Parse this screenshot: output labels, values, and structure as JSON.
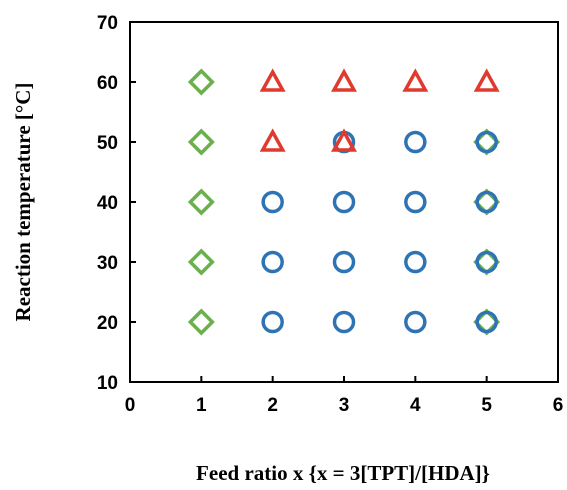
{
  "chart_data": {
    "type": "scatter",
    "title": "",
    "xlabel": "Feed ratio x {x = 3[TPT]/[HDA]}",
    "ylabel": "Reaction temperature  [°C]",
    "xlim": [
      0,
      6
    ],
    "ylim": [
      10,
      70
    ],
    "xticks": [
      0,
      1,
      2,
      3,
      4,
      5,
      6
    ],
    "yticks": [
      10,
      20,
      30,
      40,
      50,
      60,
      70
    ],
    "grid": false,
    "legend": "none",
    "series": [
      {
        "marker": "diamond",
        "color": "#6ab04c",
        "points": [
          [
            1,
            20
          ],
          [
            1,
            30
          ],
          [
            1,
            40
          ],
          [
            1,
            50
          ],
          [
            1,
            60
          ],
          [
            5,
            20
          ],
          [
            5,
            30
          ],
          [
            5,
            40
          ],
          [
            5,
            50
          ]
        ]
      },
      {
        "marker": "circle",
        "color": "#2e74b5",
        "points": [
          [
            2,
            20
          ],
          [
            3,
            20
          ],
          [
            4,
            20
          ],
          [
            5,
            20
          ],
          [
            2,
            30
          ],
          [
            3,
            30
          ],
          [
            4,
            30
          ],
          [
            5,
            30
          ],
          [
            2,
            40
          ],
          [
            3,
            40
          ],
          [
            4,
            40
          ],
          [
            5,
            40
          ],
          [
            3,
            50
          ],
          [
            4,
            50
          ],
          [
            5,
            50
          ]
        ]
      },
      {
        "marker": "triangle",
        "color": "#e03a2e",
        "points": [
          [
            2,
            50
          ],
          [
            3,
            50
          ],
          [
            2,
            60
          ],
          [
            3,
            60
          ],
          [
            4,
            60
          ],
          [
            5,
            60
          ]
        ]
      }
    ]
  }
}
